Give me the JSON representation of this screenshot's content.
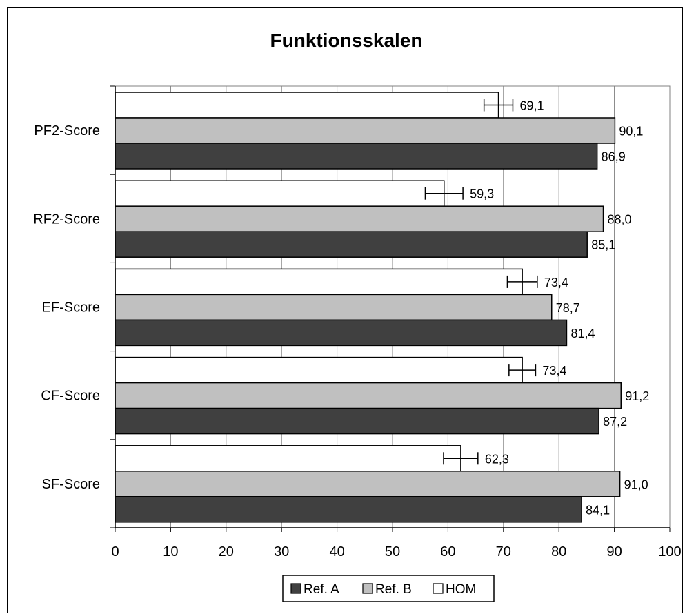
{
  "chart_data": {
    "type": "bar",
    "orientation": "horizontal",
    "title": "Funktionsskalen",
    "xlabel": "",
    "ylabel": "",
    "xlim": [
      0,
      100
    ],
    "x_ticks": [
      "0",
      "10",
      "20",
      "30",
      "40",
      "50",
      "60",
      "70",
      "80",
      "90",
      "100"
    ],
    "categories": [
      "PF2-Score",
      "RF2-Score",
      "EF-Score",
      "CF-Score",
      "SF-Score"
    ],
    "series": [
      {
        "name": "HOM",
        "color": "#ffffff",
        "values": [
          69.1,
          59.3,
          73.4,
          73.4,
          62.3
        ],
        "labels": [
          "69,1",
          "59,3",
          "73,4",
          "73,4",
          "62,3"
        ],
        "error": [
          2.6,
          3.4,
          2.7,
          2.4,
          3.1
        ]
      },
      {
        "name": "Ref. B",
        "color": "#c0c0c0",
        "values": [
          90.1,
          88.0,
          78.7,
          91.2,
          91.0
        ],
        "labels": [
          "90,1",
          "88,0",
          "78,7",
          "91,2",
          "91,0"
        ]
      },
      {
        "name": "Ref. A",
        "color": "#404040",
        "values": [
          86.9,
          85.1,
          81.4,
          87.2,
          84.1
        ],
        "labels": [
          "86,9",
          "85,1",
          "81,4",
          "87,2",
          "84,1"
        ]
      }
    ],
    "legend": {
      "placement": "bottom",
      "order": [
        "Ref. A",
        "Ref. B",
        "HOM"
      ]
    },
    "grid": true
  }
}
